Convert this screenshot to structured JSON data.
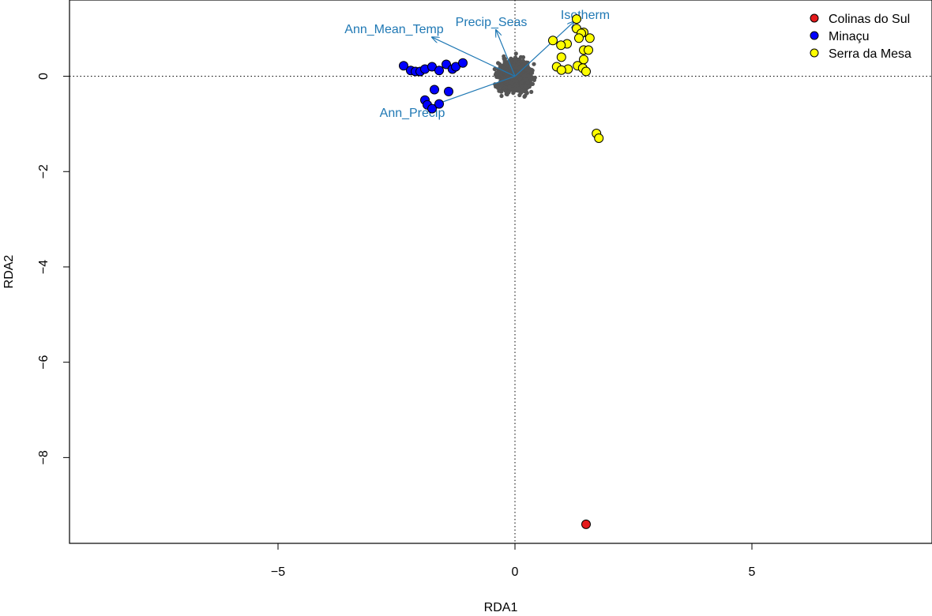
{
  "chart_data": {
    "type": "scatter",
    "title": "",
    "xlabel": "RDA1",
    "ylabel": "RDA2",
    "xlim": [
      -9.4,
      8.8
    ],
    "ylim": [
      -9.8,
      1.6
    ],
    "x_ticks": [
      -5,
      0,
      5
    ],
    "y_ticks": [
      0,
      -2,
      -4,
      -6,
      -8
    ],
    "x_tick_labels": [
      "−5",
      "0",
      "5"
    ],
    "y_tick_labels": [
      "0",
      "−2",
      "−4",
      "−6",
      "−8"
    ],
    "reference_lines": {
      "x": 0,
      "y": 0,
      "style": "dotted"
    },
    "legend": {
      "position": "top-right",
      "entries": [
        {
          "label": "Colinas do Sul",
          "color": "#e41a1c"
        },
        {
          "label": "Minaçu",
          "color": "#0000ff"
        },
        {
          "label": "Serra da Mesa",
          "color": "#ffff00"
        }
      ]
    },
    "series": [
      {
        "name": "Colinas do Sul",
        "color": "#e41a1c",
        "points": [
          [
            1.5,
            -9.4
          ]
        ]
      },
      {
        "name": "Minaçu",
        "color": "#0000ff",
        "points": [
          [
            -2.35,
            0.22
          ],
          [
            -2.2,
            0.12
          ],
          [
            -2.1,
            0.1
          ],
          [
            -2.0,
            0.1
          ],
          [
            -1.9,
            0.15
          ],
          [
            -1.75,
            0.2
          ],
          [
            -1.6,
            0.12
          ],
          [
            -1.45,
            0.25
          ],
          [
            -1.32,
            0.15
          ],
          [
            -1.25,
            0.2
          ],
          [
            -1.1,
            0.28
          ],
          [
            -1.7,
            -0.28
          ],
          [
            -1.9,
            -0.5
          ],
          [
            -1.85,
            -0.6
          ],
          [
            -1.6,
            -0.58
          ],
          [
            -1.75,
            -0.68
          ],
          [
            -1.4,
            -0.32
          ]
        ]
      },
      {
        "name": "Serra da Mesa",
        "color": "#ffff00",
        "points": [
          [
            1.3,
            1.2
          ],
          [
            1.3,
            1.0
          ],
          [
            1.45,
            0.92
          ],
          [
            1.4,
            0.9
          ],
          [
            1.35,
            0.8
          ],
          [
            1.58,
            0.8
          ],
          [
            0.8,
            0.75
          ],
          [
            1.1,
            0.68
          ],
          [
            0.97,
            0.65
          ],
          [
            1.45,
            0.55
          ],
          [
            1.55,
            0.55
          ],
          [
            0.98,
            0.4
          ],
          [
            1.45,
            0.35
          ],
          [
            0.88,
            0.2
          ],
          [
            1.12,
            0.15
          ],
          [
            0.98,
            0.13
          ],
          [
            1.32,
            0.22
          ],
          [
            1.43,
            0.17
          ],
          [
            1.5,
            0.1
          ],
          [
            1.72,
            -1.2
          ],
          [
            1.77,
            -1.3
          ]
        ]
      }
    ],
    "snp_cloud": {
      "color": "#555555",
      "center": [
        0,
        0
      ],
      "spread_x": 0.28,
      "spread_y": 0.28
    },
    "biplot_arrows": [
      {
        "label": "Ann_Mean_Temp",
        "x": -1.75,
        "y": 0.82
      },
      {
        "label": "Precip_Seas",
        "x": -0.4,
        "y": 0.97
      },
      {
        "label": "Isotherm",
        "x": 1.25,
        "y": 1.15
      },
      {
        "label": "Ann_Precip",
        "x": -1.7,
        "y": -0.6
      }
    ],
    "arrow_color": "#1f78b4"
  }
}
